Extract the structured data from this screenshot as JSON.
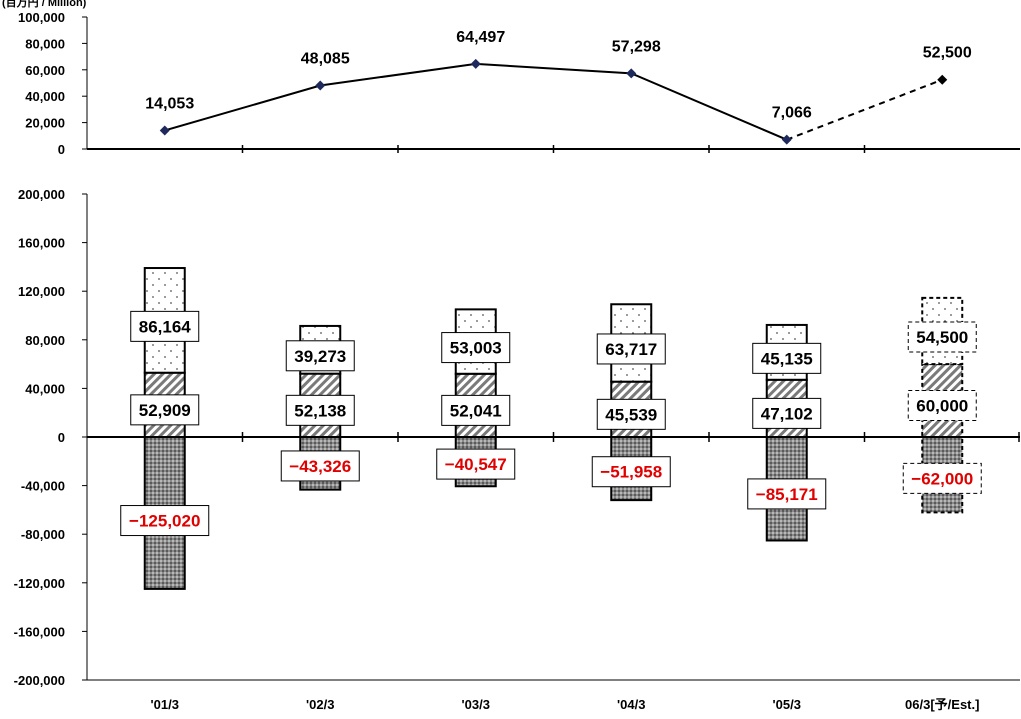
{
  "unit_label": "(百万円 / Million)",
  "colors": {
    "line": "#000000",
    "marker": "#1f2a5c",
    "negative_text": "#e00000",
    "positive_text": "#000000"
  },
  "chart_data": [
    {
      "type": "line",
      "categories": [
        "'01/3",
        "'02/3",
        "'03/3",
        "'04/3",
        "'05/3",
        "06/3[予/Est.]"
      ],
      "series": [
        {
          "values": [
            14053,
            48085,
            64497,
            57298,
            7066,
            52500
          ],
          "value_labels": [
            "14,053",
            "48,085",
            "64,497",
            "57,298",
            "7,066",
            "52,500"
          ],
          "estimate_index": 5
        }
      ],
      "ylim": [
        0,
        100000
      ],
      "yticks": [
        0,
        20000,
        40000,
        60000,
        80000,
        100000
      ],
      "ytick_labels": [
        "0",
        "20,000",
        "40,000",
        "60,000",
        "80,000",
        "100,000"
      ],
      "grid": false
    },
    {
      "type": "bar",
      "stacked": true,
      "categories": [
        "'01/3",
        "'02/3",
        "'03/3",
        "'04/3",
        "'05/3",
        "06/3[予/Est.]"
      ],
      "series": [
        {
          "pattern": "hatch",
          "values": [
            52909,
            52138,
            52041,
            45539,
            47102,
            60000
          ],
          "value_labels": [
            "52,909",
            "52,138",
            "52,041",
            "45,539",
            "47,102",
            "60,000"
          ]
        },
        {
          "pattern": "dots",
          "values": [
            86164,
            39273,
            53003,
            63717,
            45135,
            54500
          ],
          "value_labels": [
            "86,164",
            "39,273",
            "53,003",
            "63,717",
            "45,135",
            "54,500"
          ]
        },
        {
          "pattern": "crosshatch",
          "values": [
            -125020,
            -43326,
            -40547,
            -51958,
            -85171,
            -62000
          ],
          "value_labels": [
            "−125,020",
            "−43,326",
            "−40,547",
            "−51,958",
            "−85,171",
            "−62,000"
          ]
        }
      ],
      "estimate_index": 5,
      "ylim": [
        -200000,
        200000
      ],
      "yticks": [
        -200000,
        -160000,
        -120000,
        -80000,
        -40000,
        0,
        40000,
        80000,
        120000,
        160000,
        200000
      ],
      "ytick_labels": [
        "-200,000",
        "-160,000",
        "-120,000",
        "-80,000",
        "-40,000",
        "0",
        "40,000",
        "80,000",
        "120,000",
        "160,000",
        "200,000"
      ],
      "grid": false
    }
  ]
}
